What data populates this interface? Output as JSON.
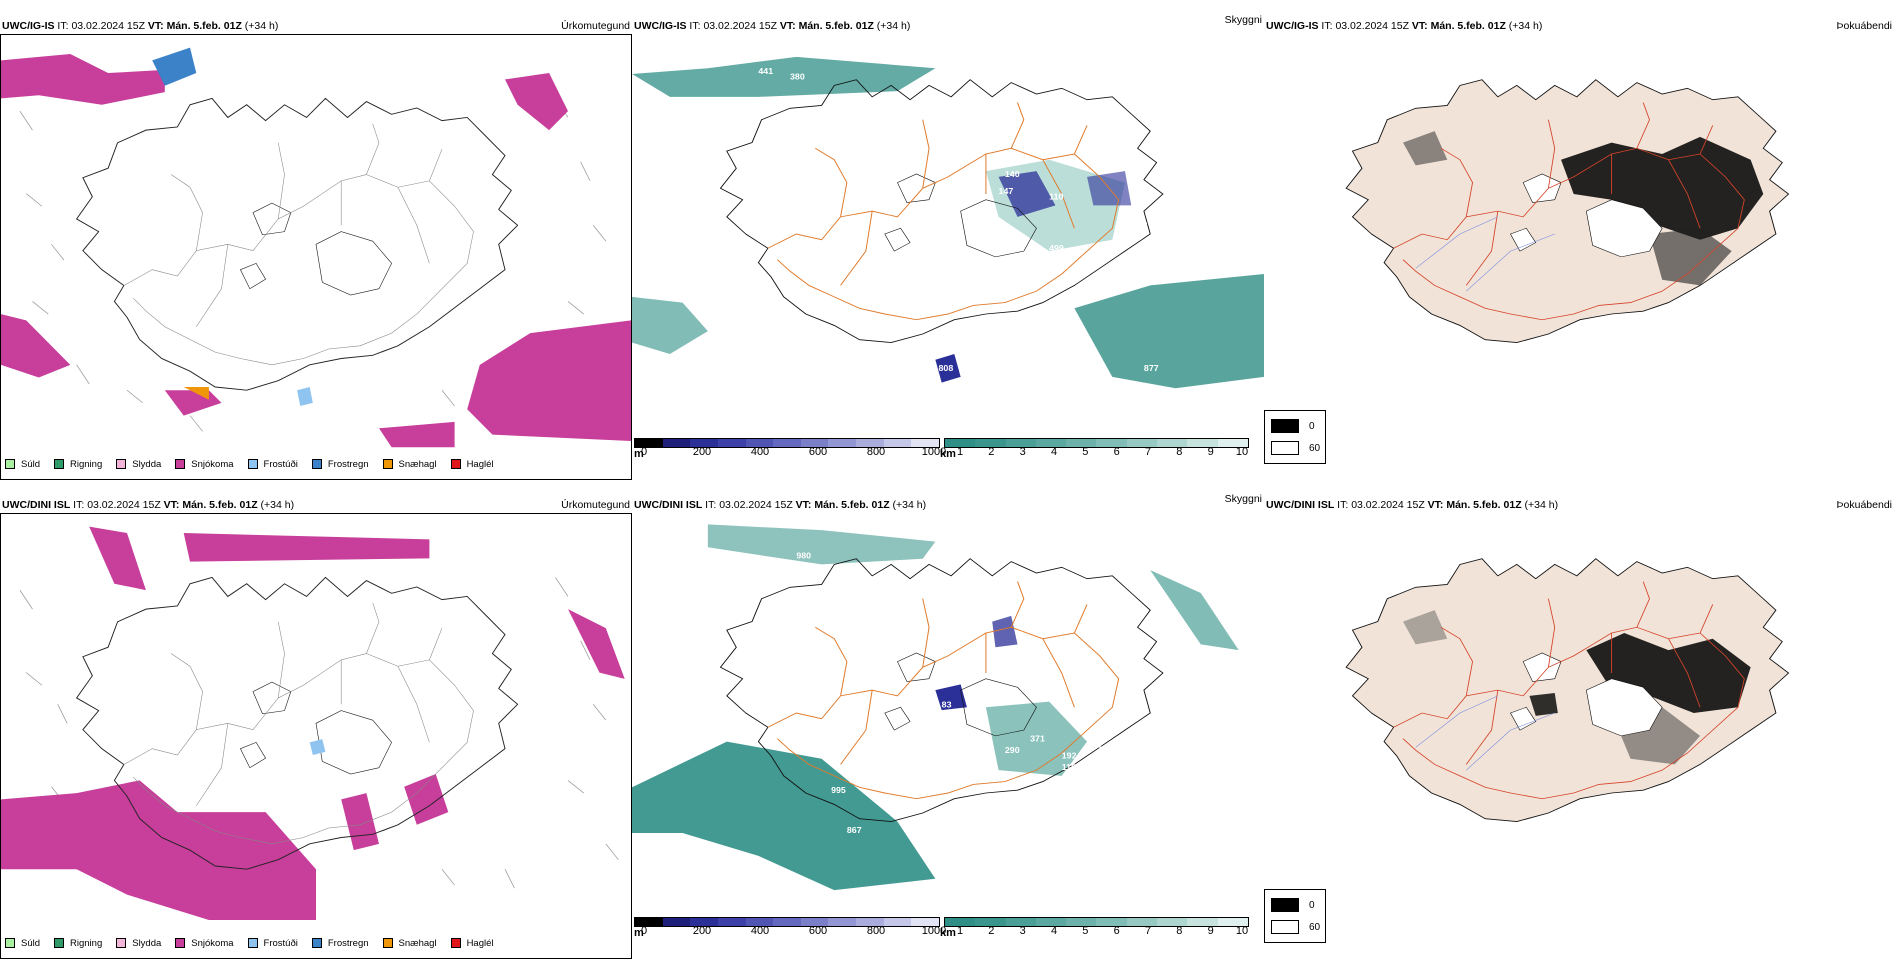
{
  "colors": {
    "snow": "#c73e9b",
    "frost_drizzle": "#3b82c8",
    "snow_grains": "#f0960a",
    "cloud_teal": "#2f8f86",
    "low_cloud_blue": "#2b2f98",
    "land_pink": "#f1e3d8",
    "roads_orange": "#e07a2a",
    "roads_red": "#d5442a",
    "rivers_blue": "#7b8ee0"
  },
  "rows": [
    {
      "model": "UWC/IG-IS",
      "it_label": "IT:",
      "it_value": "03.02.2024 15Z",
      "vt_label": "VT:",
      "vt_value": "Mán. 5.feb. 01Z",
      "lead": "(+34 h)",
      "panels": {
        "precip_type": "Úrkomutegund",
        "cloud_base": "Skyggni",
        "cloud_cover": "Þokuábendi"
      },
      "cloud_labels": [
        "441",
        "380",
        "124",
        "140",
        "147",
        "110",
        "499",
        "377",
        "47",
        "808",
        "877"
      ]
    },
    {
      "model": "UWC/DINI ISL",
      "it_label": "IT:",
      "it_value": "03.02.2024 15Z",
      "vt_label": "VT:",
      "vt_value": "Mán. 5.feb. 01Z",
      "lead": "(+34 h)",
      "panels": {
        "precip_type": "Úrkomutegund",
        "cloud_base": "Skyggni",
        "cloud_cover": "Þokuábendi"
      },
      "cloud_labels": [
        "980",
        "52",
        "120",
        "83",
        "371",
        "290",
        "192",
        "110",
        "162",
        "382",
        "995",
        "867"
      ]
    }
  ],
  "precip_legend": [
    {
      "label": "Súld",
      "color": "#a8f0a0"
    },
    {
      "label": "Rigning",
      "color": "#2f9b68"
    },
    {
      "label": "Slydda",
      "color": "#f2b4d8"
    },
    {
      "label": "Snjókoma",
      "color": "#c73e9b"
    },
    {
      "label": "Frostúði",
      "color": "#90c4f0"
    },
    {
      "label": "Frostregn",
      "color": "#3b82c8"
    },
    {
      "label": "Snæhagl",
      "color": "#f0960a"
    },
    {
      "label": "Haglél",
      "color": "#e0161a"
    }
  ],
  "cloud_base_legend": {
    "m_unit": "m",
    "m_ticks": [
      "0",
      "200",
      "400",
      "600",
      "800",
      "1000"
    ],
    "m_colors": [
      "#000000",
      "#1d1f7a",
      "#2b2f98",
      "#3c40a8",
      "#5055b4",
      "#6469bf",
      "#7b7fc8",
      "#9296d2",
      "#aaaddc",
      "#c5c7e8",
      "#e2e3f3"
    ],
    "km_unit": "km",
    "km_ticks": [
      "1",
      "2",
      "3",
      "4",
      "5",
      "6",
      "7",
      "8",
      "9",
      "10"
    ],
    "km_colors": [
      "#2f8f86",
      "#3a968d",
      "#4a9f96",
      "#5aa8a0",
      "#6cb2aa",
      "#80bdb6",
      "#96c9c2",
      "#aed6d0",
      "#c6e3de",
      "#e0f0ee"
    ]
  },
  "cloud_cover_legend": {
    "items": [
      {
        "label": "0",
        "color": "#000000"
      },
      {
        "label": "60",
        "color": "#ffffff"
      }
    ]
  }
}
